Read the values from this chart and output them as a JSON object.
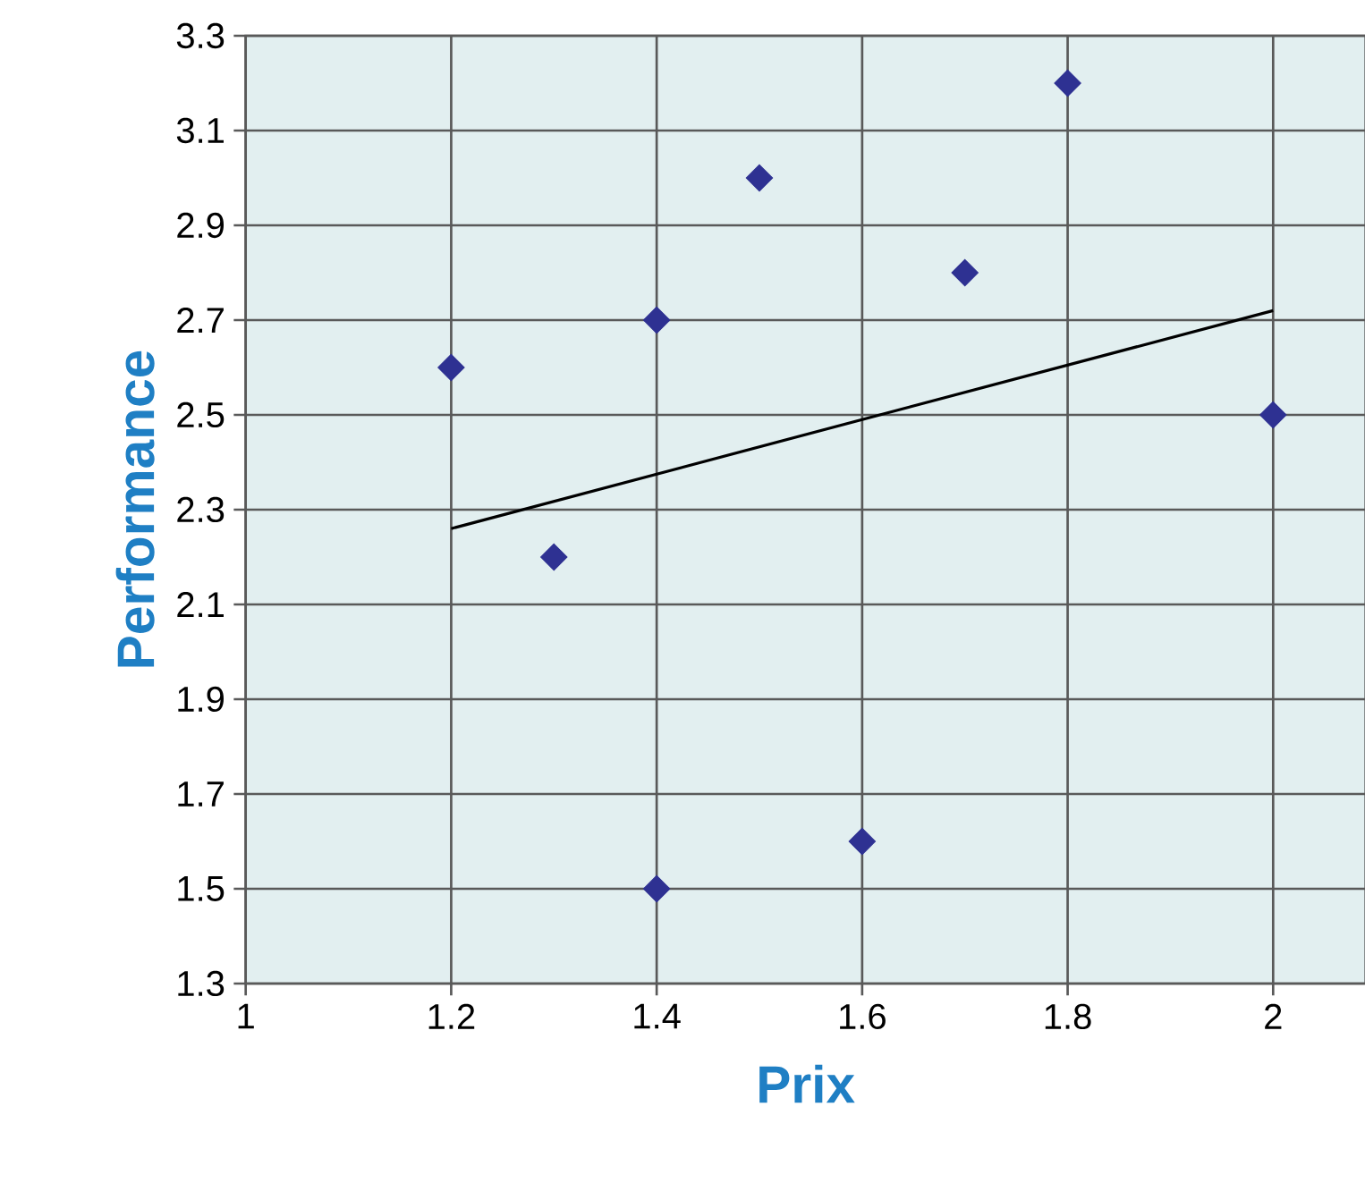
{
  "chart_data": {
    "type": "scatter",
    "xlabel": "Prix",
    "ylabel": "Performance",
    "xlim": [
      1,
      2.09
    ],
    "xticks": [
      1,
      1.2,
      1.4,
      1.6,
      1.8,
      2
    ],
    "ylim": [
      1.3,
      3.3
    ],
    "yticks": [
      1.3,
      1.5,
      1.7,
      1.9,
      2.1,
      2.3,
      2.5,
      2.7,
      2.9,
      3.1,
      3.3
    ],
    "grid": true,
    "marker": "diamond",
    "series": [
      {
        "color": "#2e3192",
        "x": [
          1.2,
          1.3,
          1.4,
          1.4,
          1.5,
          1.6,
          1.7,
          1.8,
          2.0
        ],
        "values": [
          2.6,
          2.2,
          2.7,
          1.5,
          3.0,
          1.6,
          2.8,
          3.2,
          2.5
        ]
      },
      {
        "type": "line",
        "color": "#000000",
        "marker": "none",
        "line_style": "solid",
        "x": [
          1.2,
          2.0
        ],
        "values": [
          2.26,
          2.72
        ]
      }
    ]
  }
}
